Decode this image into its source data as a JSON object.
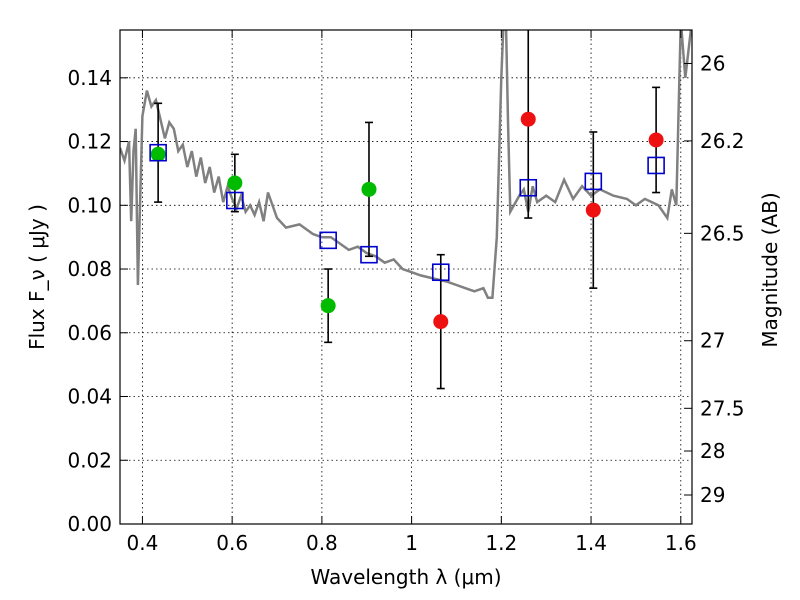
{
  "chart_data": {
    "type": "scatter",
    "xlabel": "Wavelength  λ (μm)",
    "ylabel": "Flux  F_ν  ( μJy )",
    "ylabel_right": "Magnitude (AB)",
    "xlim": [
      0.35,
      1.625
    ],
    "ylim": [
      0.0,
      0.155
    ],
    "x_ticks": [
      0.4,
      0.6,
      0.8,
      1.0,
      1.2,
      1.4,
      1.6
    ],
    "x_tick_labels": [
      "0.4",
      "0.6",
      "0.8",
      "1",
      "1.2",
      "1.4",
      "1.6"
    ],
    "y_ticks": [
      0.0,
      0.02,
      0.04,
      0.06,
      0.08,
      0.1,
      0.12,
      0.14
    ],
    "y_tick_labels": [
      "0.00",
      "0.02",
      "0.04",
      "0.06",
      "0.08",
      "0.10",
      "0.12",
      "0.14"
    ],
    "right_ticks": [
      {
        "label": "26",
        "flux": 0.1445
      },
      {
        "label": "26.2",
        "flux": 0.1202
      },
      {
        "label": "26.5",
        "flux": 0.0912
      },
      {
        "label": "27",
        "flux": 0.0575
      },
      {
        "label": "27.5",
        "flux": 0.0363
      },
      {
        "label": "28",
        "flux": 0.0229
      },
      {
        "label": "29",
        "flux": 0.0091
      }
    ],
    "grid": true,
    "series": [
      {
        "name": "Observed (green)",
        "color": "#00bb00",
        "points": [
          {
            "x": 0.435,
            "y": 0.116,
            "err": 0.0
          },
          {
            "x": 0.606,
            "y": 0.107,
            "err": 0.009
          },
          {
            "x": 0.814,
            "y": 0.0685,
            "err": 0.0115
          },
          {
            "x": 0.905,
            "y": 0.105,
            "err": 0.021
          }
        ]
      },
      {
        "name": "Observed (red)",
        "color": "#ee1111",
        "points": [
          {
            "x": 1.065,
            "y": 0.0635,
            "err": 0.021
          },
          {
            "x": 1.26,
            "y": 0.127,
            "err": 0.031
          },
          {
            "x": 1.405,
            "y": 0.0985,
            "err": 0.0245
          },
          {
            "x": 1.545,
            "y": 0.1205,
            "err": 0.0165
          }
        ]
      },
      {
        "name": "Model (boxes)",
        "color": "#0000cc",
        "points": [
          {
            "x": 0.435,
            "y": 0.1165,
            "err": 0.0155
          },
          {
            "x": 0.606,
            "y": 0.1015,
            "err": 0.0
          },
          {
            "x": 0.814,
            "y": 0.089,
            "err": 0.0
          },
          {
            "x": 0.905,
            "y": 0.0845,
            "err": 0.0
          },
          {
            "x": 1.065,
            "y": 0.079,
            "err": 0.0
          },
          {
            "x": 1.26,
            "y": 0.1055,
            "err": 0.0
          },
          {
            "x": 1.405,
            "y": 0.1075,
            "err": 0.0
          },
          {
            "x": 1.545,
            "y": 0.1125,
            "err": 0.0
          }
        ]
      }
    ],
    "spectrum": {
      "color": "#808080",
      "x": [
        0.35,
        0.36,
        0.37,
        0.375,
        0.38,
        0.385,
        0.39,
        0.4,
        0.41,
        0.42,
        0.43,
        0.44,
        0.45,
        0.46,
        0.47,
        0.48,
        0.49,
        0.5,
        0.51,
        0.52,
        0.53,
        0.54,
        0.55,
        0.56,
        0.57,
        0.58,
        0.59,
        0.6,
        0.61,
        0.62,
        0.63,
        0.64,
        0.65,
        0.66,
        0.67,
        0.68,
        0.7,
        0.72,
        0.75,
        0.78,
        0.8,
        0.82,
        0.84,
        0.86,
        0.88,
        0.9,
        0.92,
        0.94,
        0.96,
        0.98,
        1.0,
        1.02,
        1.05,
        1.08,
        1.1,
        1.12,
        1.14,
        1.16,
        1.17,
        1.18,
        1.19,
        1.2,
        1.205,
        1.21,
        1.215,
        1.22,
        1.24,
        1.25,
        1.26,
        1.27,
        1.28,
        1.3,
        1.32,
        1.34,
        1.36,
        1.38,
        1.4,
        1.42,
        1.45,
        1.48,
        1.5,
        1.52,
        1.55,
        1.57,
        1.58,
        1.59,
        1.6,
        1.61,
        1.625
      ],
      "y": [
        0.118,
        0.114,
        0.12,
        0.095,
        0.117,
        0.124,
        0.075,
        0.128,
        0.136,
        0.131,
        0.133,
        0.127,
        0.121,
        0.126,
        0.124,
        0.117,
        0.119,
        0.112,
        0.117,
        0.109,
        0.115,
        0.107,
        0.112,
        0.104,
        0.109,
        0.101,
        0.106,
        0.102,
        0.099,
        0.103,
        0.098,
        0.1,
        0.097,
        0.101,
        0.095,
        0.104,
        0.096,
        0.093,
        0.094,
        0.091,
        0.09,
        0.09,
        0.088,
        0.086,
        0.087,
        0.085,
        0.084,
        0.082,
        0.083,
        0.08,
        0.079,
        0.078,
        0.077,
        0.076,
        0.075,
        0.074,
        0.073,
        0.074,
        0.071,
        0.071,
        0.09,
        0.14,
        0.158,
        0.16,
        0.125,
        0.098,
        0.103,
        0.105,
        0.098,
        0.106,
        0.101,
        0.103,
        0.101,
        0.108,
        0.102,
        0.106,
        0.103,
        0.105,
        0.103,
        0.102,
        0.1,
        0.102,
        0.1,
        0.096,
        0.105,
        0.1,
        0.158,
        0.14,
        0.158
      ]
    }
  }
}
